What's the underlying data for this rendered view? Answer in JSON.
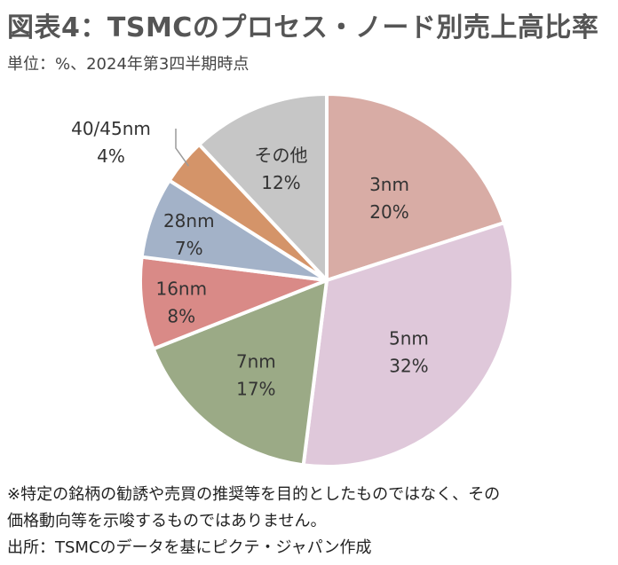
{
  "title": "図表4：TSMCのプロセス・ノード別売上高比率",
  "unit_note": "単位：%、2024年第3四半期時点",
  "footnotes": {
    "line1": "※特定の銘柄の勧誘や売買の推奨等を目的としたものではなく、その",
    "line2": "価格動向等を示唆するものではありません。",
    "source": "出所：TSMCのデータを基にピクテ・ジャパン作成"
  },
  "chart_data": {
    "type": "pie",
    "title": "図表4：TSMCのプロセス・ノード別売上高比率",
    "slices": [
      {
        "label": "3nm",
        "value": 20,
        "value_label": "20%",
        "color": "#D8ACA5"
      },
      {
        "label": "5nm",
        "value": 32,
        "value_label": "32%",
        "color": "#DFC8DA"
      },
      {
        "label": "7nm",
        "value": 17,
        "value_label": "17%",
        "color": "#9BAA86"
      },
      {
        "label": "16nm",
        "value": 8,
        "value_label": "8%",
        "color": "#D98A87"
      },
      {
        "label": "28nm",
        "value": 7,
        "value_label": "7%",
        "color": "#A3B2C8"
      },
      {
        "label": "40/45nm",
        "value": 4,
        "value_label": "4%",
        "color": "#D49469"
      },
      {
        "label": "その他",
        "value": 12,
        "value_label": "12%",
        "color": "#C6C6C6"
      }
    ],
    "start": "12 o'clock",
    "direction": "clockwise"
  }
}
